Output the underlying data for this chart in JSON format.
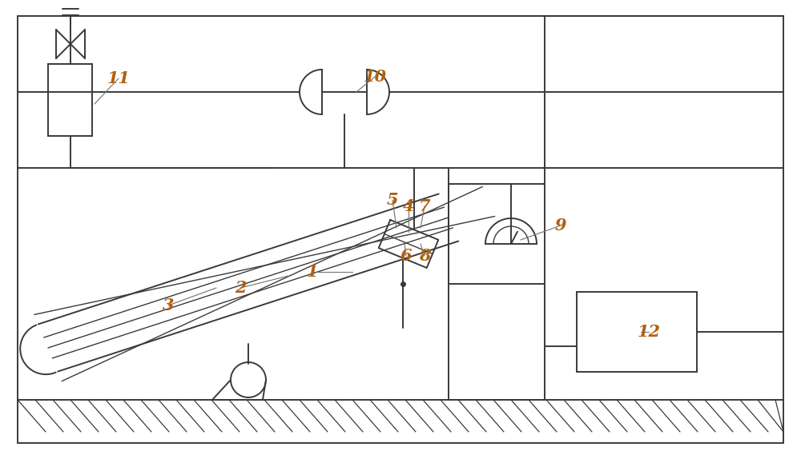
{
  "bg_color": "#ffffff",
  "line_color": "#3a3a3a",
  "label_color": "#b06010",
  "fig_width": 10.0,
  "fig_height": 5.74,
  "dpi": 100
}
